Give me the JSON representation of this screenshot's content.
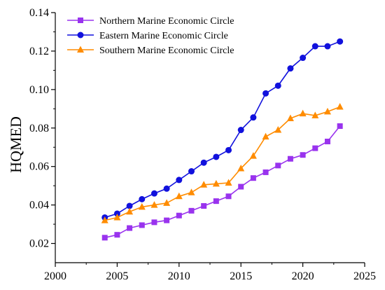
{
  "chart_data": {
    "type": "line",
    "title": "",
    "xlabel": "",
    "ylabel": "HQMED",
    "xlim": [
      2000,
      2025
    ],
    "ylim": [
      0.01,
      0.14
    ],
    "xticks": [
      2000,
      2005,
      2010,
      2015,
      2020,
      2025
    ],
    "yticks": [
      0.02,
      0.04,
      0.06,
      0.08,
      0.1,
      0.12,
      0.14
    ],
    "xtick_labels": [
      "2000",
      "2005",
      "2010",
      "2015",
      "2020",
      "2025"
    ],
    "ytick_labels": [
      "0.02",
      "0.04",
      "0.06",
      "0.08",
      "0.10",
      "0.12",
      "0.14"
    ],
    "grid": false,
    "legend_position": "top-left",
    "x": [
      2004,
      2005,
      2006,
      2007,
      2008,
      2009,
      2010,
      2011,
      2012,
      2013,
      2014,
      2015,
      2016,
      2017,
      2018,
      2019,
      2020,
      2021,
      2022,
      2023
    ],
    "series": [
      {
        "name": "Northern Marine Economic Circle",
        "color": "#9933ee",
        "marker": "square",
        "values": [
          0.023,
          0.0245,
          0.028,
          0.0295,
          0.031,
          0.032,
          0.0345,
          0.037,
          0.0395,
          0.042,
          0.0445,
          0.0495,
          0.054,
          0.057,
          0.0605,
          0.064,
          0.066,
          0.0695,
          0.073,
          0.081
        ]
      },
      {
        "name": "Eastern Marine Economic Circle",
        "color": "#1111dd",
        "marker": "circle",
        "values": [
          0.0335,
          0.0355,
          0.0395,
          0.043,
          0.046,
          0.0485,
          0.053,
          0.0575,
          0.062,
          0.065,
          0.0685,
          0.079,
          0.0855,
          0.098,
          0.102,
          0.111,
          0.1165,
          0.1225,
          0.1225,
          0.125
        ]
      },
      {
        "name": "Southern Marine Economic Circle",
        "color": "#ff8c00",
        "marker": "triangle",
        "values": [
          0.032,
          0.0335,
          0.0365,
          0.039,
          0.04,
          0.041,
          0.0445,
          0.0465,
          0.0505,
          0.051,
          0.0515,
          0.059,
          0.0655,
          0.0755,
          0.079,
          0.085,
          0.0875,
          0.0865,
          0.0885,
          0.091
        ]
      }
    ]
  }
}
